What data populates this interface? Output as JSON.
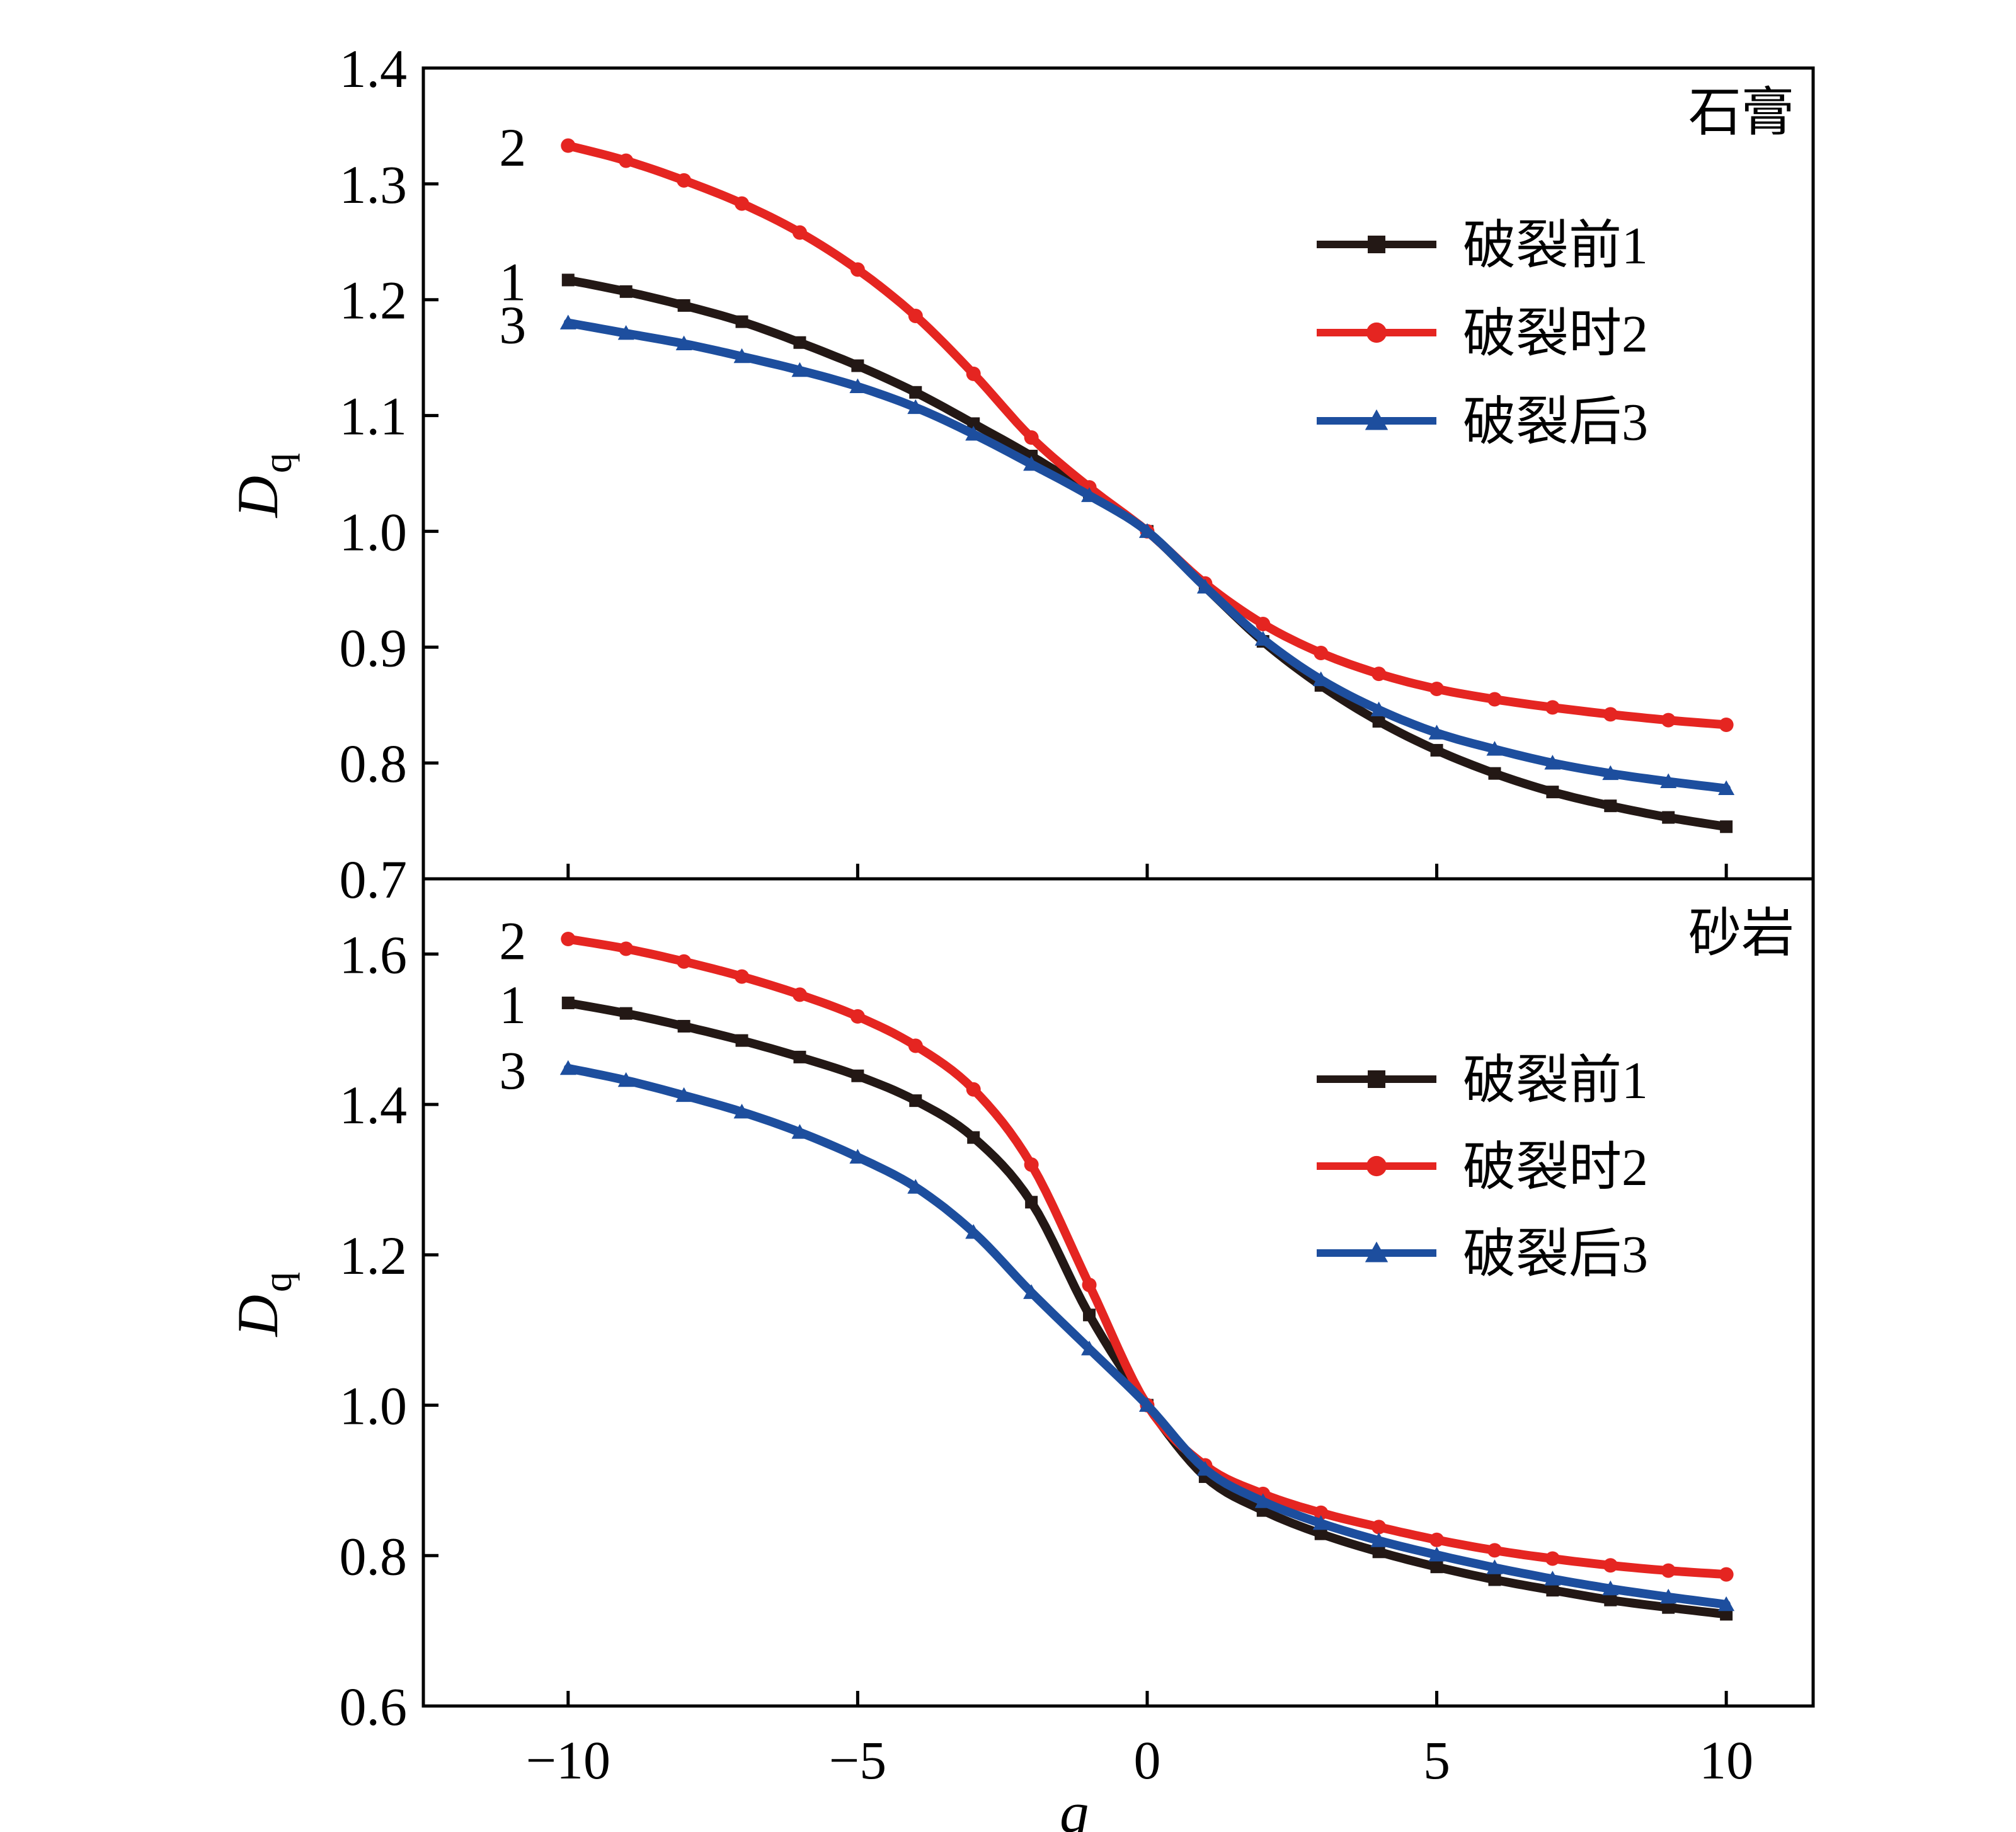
{
  "chart_data": [
    {
      "type": "line",
      "panel_label": "石膏",
      "ylabel_main": "D",
      "ylabel_sub": "q",
      "xlabel": "",
      "xlim": [
        -12.5,
        11.5
      ],
      "ylim": [
        0.7,
        1.4
      ],
      "xticks": [
        -10,
        -5,
        0,
        5,
        10
      ],
      "yticks": [
        0.7,
        0.8,
        0.9,
        1.0,
        1.1,
        1.2,
        1.3,
        1.4
      ],
      "ytick_labels": [
        "0.7",
        "0.8",
        "0.9",
        "1.0",
        "1.1",
        "1.2",
        "1.3",
        "1.4"
      ],
      "grid": false,
      "legend_position": "top-right",
      "series": [
        {
          "name": "破裂前1",
          "end_label": "1",
          "color": "#231815",
          "marker": "square",
          "x": [
            -10,
            -9,
            -8,
            -7,
            -6,
            -5,
            -4,
            -3,
            -2,
            -1,
            0,
            1,
            2,
            3,
            4,
            5,
            6,
            7,
            8,
            9,
            10
          ],
          "values": [
            1.217,
            1.207,
            1.195,
            1.181,
            1.163,
            1.143,
            1.12,
            1.093,
            1.065,
            1.034,
            1.0,
            0.952,
            0.905,
            0.867,
            0.836,
            0.811,
            0.791,
            0.775,
            0.763,
            0.753,
            0.745
          ]
        },
        {
          "name": "破裂时2",
          "end_label": "2",
          "color": "#e52521",
          "marker": "circle",
          "x": [
            -10,
            -9,
            -8,
            -7,
            -6,
            -5,
            -4,
            -3,
            -2,
            -1,
            0,
            1,
            2,
            3,
            4,
            5,
            6,
            7,
            8,
            9,
            10
          ],
          "values": [
            1.333,
            1.32,
            1.303,
            1.283,
            1.258,
            1.226,
            1.186,
            1.136,
            1.081,
            1.038,
            1.0,
            0.955,
            0.92,
            0.895,
            0.877,
            0.864,
            0.855,
            0.848,
            0.842,
            0.837,
            0.833
          ]
        },
        {
          "name": "破裂后3",
          "end_label": "3",
          "color": "#1d4e9e",
          "marker": "triangle",
          "x": [
            -10,
            -9,
            -8,
            -7,
            -6,
            -5,
            -4,
            -3,
            -2,
            -1,
            0,
            1,
            2,
            3,
            4,
            5,
            6,
            7,
            8,
            9,
            10
          ],
          "values": [
            1.18,
            1.171,
            1.162,
            1.151,
            1.139,
            1.125,
            1.107,
            1.084,
            1.058,
            1.031,
            1.0,
            0.952,
            0.907,
            0.872,
            0.846,
            0.826,
            0.812,
            0.8,
            0.791,
            0.784,
            0.778
          ]
        }
      ]
    },
    {
      "type": "line",
      "panel_label": "砂岩",
      "ylabel_main": "D",
      "ylabel_sub": "q",
      "xlabel": "q",
      "xlim": [
        -12.5,
        11.5
      ],
      "ylim": [
        0.6,
        1.7
      ],
      "xticks": [
        -10,
        -5,
        0,
        5,
        10
      ],
      "xtick_labels": [
        "−10",
        "−5",
        "0",
        "5",
        "10"
      ],
      "yticks": [
        0.6,
        0.8,
        1.0,
        1.2,
        1.4,
        1.6
      ],
      "ytick_labels": [
        "0.6",
        "0.8",
        "1.0",
        "1.2",
        "1.4",
        "1.6"
      ],
      "grid": false,
      "legend_position": "top-right",
      "series": [
        {
          "name": "破裂前1",
          "end_label": "1",
          "color": "#231815",
          "marker": "square",
          "x": [
            -10,
            -9,
            -8,
            -7,
            -6,
            -5,
            -4,
            -3,
            -2,
            -1,
            0,
            1,
            2,
            3,
            4,
            5,
            6,
            7,
            8,
            9,
            10
          ],
          "values": [
            1.535,
            1.521,
            1.504,
            1.485,
            1.463,
            1.438,
            1.405,
            1.356,
            1.27,
            1.12,
            1.0,
            0.905,
            0.86,
            0.829,
            0.805,
            0.785,
            0.768,
            0.754,
            0.741,
            0.731,
            0.722
          ]
        },
        {
          "name": "破裂时2",
          "end_label": "2",
          "color": "#e52521",
          "marker": "circle",
          "x": [
            -10,
            -9,
            -8,
            -7,
            -6,
            -5,
            -4,
            -3,
            -2,
            -1,
            0,
            1,
            2,
            3,
            4,
            5,
            6,
            7,
            8,
            9,
            10
          ],
          "values": [
            1.62,
            1.607,
            1.59,
            1.57,
            1.546,
            1.517,
            1.478,
            1.42,
            1.32,
            1.16,
            1.0,
            0.92,
            0.882,
            0.857,
            0.838,
            0.821,
            0.807,
            0.796,
            0.787,
            0.78,
            0.775
          ]
        },
        {
          "name": "破裂后3",
          "end_label": "3",
          "color": "#1d4e9e",
          "marker": "triangle",
          "x": [
            -10,
            -9,
            -8,
            -7,
            -6,
            -5,
            -4,
            -3,
            -2,
            -1,
            0,
            1,
            2,
            3,
            4,
            5,
            6,
            7,
            8,
            9,
            10
          ],
          "values": [
            1.448,
            1.432,
            1.412,
            1.39,
            1.363,
            1.33,
            1.29,
            1.23,
            1.15,
            1.075,
            1.0,
            0.915,
            0.872,
            0.843,
            0.82,
            0.801,
            0.784,
            0.769,
            0.756,
            0.745,
            0.735
          ]
        }
      ]
    }
  ]
}
